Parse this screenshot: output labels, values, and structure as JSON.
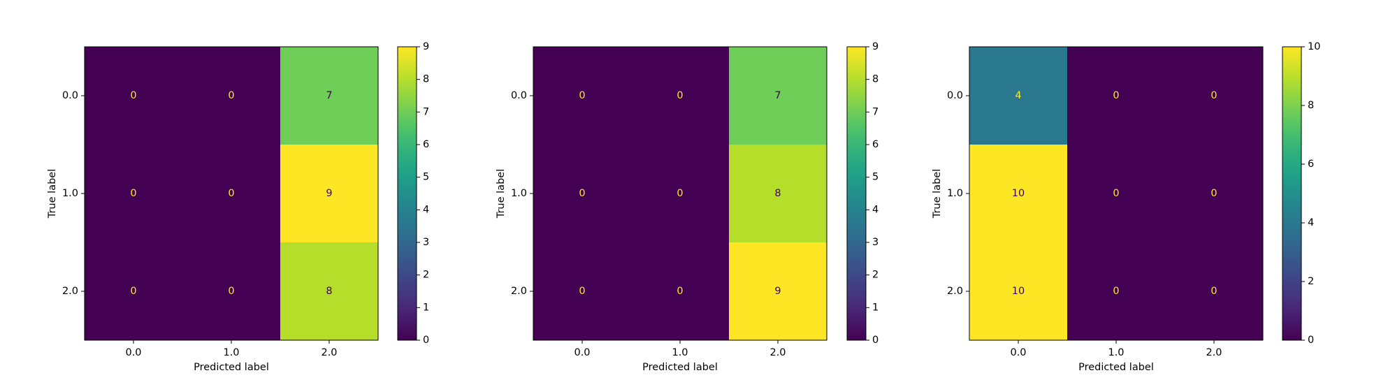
{
  "chart_data": [
    {
      "type": "heatmap",
      "xlabel": "Predicted label",
      "ylabel": "True label",
      "x_categories": [
        "0.0",
        "1.0",
        "2.0"
      ],
      "y_categories": [
        "0.0",
        "1.0",
        "2.0"
      ],
      "matrix": [
        [
          0,
          0,
          7
        ],
        [
          0,
          0,
          9
        ],
        [
          0,
          0,
          8
        ]
      ],
      "colorbar": {
        "min": 0,
        "max": 9,
        "ticks": [
          "0",
          "1",
          "2",
          "3",
          "4",
          "5",
          "6",
          "7",
          "8",
          "9"
        ]
      }
    },
    {
      "type": "heatmap",
      "xlabel": "Predicted label",
      "ylabel": "True label",
      "x_categories": [
        "0.0",
        "1.0",
        "2.0"
      ],
      "y_categories": [
        "0.0",
        "1.0",
        "2.0"
      ],
      "matrix": [
        [
          0,
          0,
          7
        ],
        [
          0,
          0,
          8
        ],
        [
          0,
          0,
          9
        ]
      ],
      "colorbar": {
        "min": 0,
        "max": 9,
        "ticks": [
          "0",
          "1",
          "2",
          "3",
          "4",
          "5",
          "6",
          "7",
          "8",
          "9"
        ]
      }
    },
    {
      "type": "heatmap",
      "xlabel": "Predicted label",
      "ylabel": "True label",
      "x_categories": [
        "0.0",
        "1.0",
        "2.0"
      ],
      "y_categories": [
        "0.0",
        "1.0",
        "2.0"
      ],
      "matrix": [
        [
          4,
          0,
          0
        ],
        [
          10,
          0,
          0
        ],
        [
          10,
          0,
          0
        ]
      ],
      "colorbar": {
        "min": 0,
        "max": 10,
        "ticks": [
          "0",
          "2",
          "4",
          "6",
          "8",
          "10"
        ]
      }
    }
  ],
  "colormap": [
    "#440154",
    "#482878",
    "#3e4989",
    "#31688e",
    "#26828e",
    "#1f9e89",
    "#35b779",
    "#6ece58",
    "#b5de2b",
    "#fde725"
  ]
}
